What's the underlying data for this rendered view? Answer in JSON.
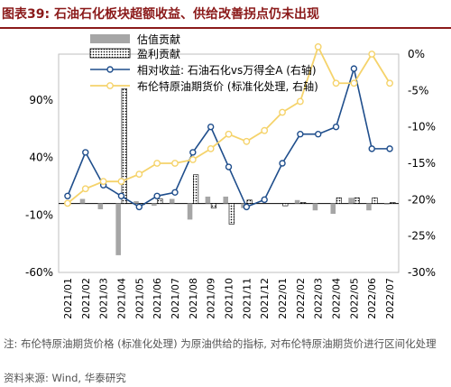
{
  "header": {
    "title": "图表39:  石油石化板块超额收益、供给改善拐点仍未出现"
  },
  "chart_data": {
    "type": "bar",
    "categories": [
      "2021/01",
      "2021/02",
      "2021/03",
      "2021/04",
      "2021/05",
      "2021/06",
      "2021/07",
      "2021/08",
      "2021/09",
      "2021/10",
      "2021/11",
      "2021/12",
      "2022/01",
      "2022/02",
      "2022/03",
      "2022/04",
      "2022/05",
      "2022/06",
      "2022/07"
    ],
    "y_left": {
      "ticks": [
        90,
        40,
        -10,
        -60
      ],
      "tick_labels": [
        "90%",
        "40%",
        "-10%",
        "-60%"
      ],
      "range": [
        -60,
        130
      ]
    },
    "y_right": {
      "ticks": [
        0,
        -5,
        -10,
        -15,
        -20,
        -25,
        -30
      ],
      "tick_labels": [
        "0%",
        "-5%",
        "-10%",
        "-15%",
        "-20%",
        "-25%",
        "-30%"
      ],
      "range": [
        -30,
        0
      ]
    },
    "legend_position": "top",
    "series": [
      {
        "name": "估值贡献",
        "kind": "bar",
        "axis": "left",
        "pattern": "solid",
        "color": "#a6a6a6",
        "values": [
          0,
          4,
          -5,
          -45,
          2,
          -2,
          4,
          -14,
          6,
          6,
          -4,
          0,
          0,
          3,
          -6,
          -9,
          5,
          -6,
          -1
        ]
      },
      {
        "name": "盈利贡献",
        "kind": "bar",
        "axis": "left",
        "pattern": "dotted",
        "color": "#000000",
        "values": [
          0,
          0,
          0,
          100,
          -1,
          4,
          0,
          25,
          -4,
          -18,
          3,
          0,
          -2,
          1,
          0,
          5,
          5,
          5,
          1
        ]
      },
      {
        "name": "相对收益: 石油石化vs万得全A (右轴)",
        "kind": "line",
        "axis": "right",
        "color": "#1f4e8c",
        "values": [
          -19.5,
          -13.5,
          -18,
          -19.5,
          -21,
          -19.5,
          -19,
          -13.5,
          -10,
          -15.5,
          -21,
          -20,
          -15,
          -11,
          -11,
          -10,
          -2,
          -13,
          -13
        ]
      },
      {
        "name": "布伦特原油期货价 (标准化处理, 右轴)",
        "kind": "line",
        "axis": "right",
        "color": "#f5d36b",
        "values": [
          -20.5,
          -18.5,
          -17.5,
          -17.5,
          -16.5,
          -15,
          -15,
          -14.5,
          -13,
          -11,
          -12,
          -10.5,
          -8,
          -6.5,
          1,
          -4,
          -4,
          0,
          -4
        ]
      }
    ]
  },
  "footer": {
    "note": "注: 布伦特原油期货价格 (标准化处理) 为原油供给的指标, 对布伦特原油期货价进行区间化处理",
    "source": "资料来源: Wind, 华泰研究"
  }
}
